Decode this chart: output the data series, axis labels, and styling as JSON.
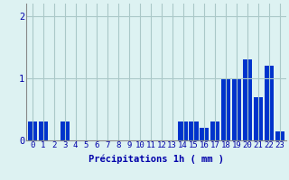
{
  "hours": [
    0,
    1,
    2,
    3,
    4,
    5,
    6,
    7,
    8,
    9,
    10,
    11,
    12,
    13,
    14,
    15,
    16,
    17,
    18,
    19,
    20,
    21,
    22,
    23
  ],
  "values": [
    0.3,
    0.3,
    0.0,
    0.3,
    0.0,
    0.0,
    0.0,
    0.0,
    0.0,
    0.0,
    0.0,
    0.0,
    0.0,
    0.0,
    0.3,
    0.3,
    0.2,
    0.3,
    1.0,
    1.0,
    1.3,
    0.7,
    1.2,
    0.15
  ],
  "bar_color": "#0033cc",
  "background_color": "#ddf2f2",
  "grid_color": "#aac8c8",
  "text_color": "#0000aa",
  "xlabel": "Précipitations 1h ( mm )",
  "ylim": [
    0,
    2.2
  ],
  "yticks": [
    0,
    1,
    2
  ],
  "xlabel_fontsize": 7.5,
  "tick_fontsize": 6.5
}
